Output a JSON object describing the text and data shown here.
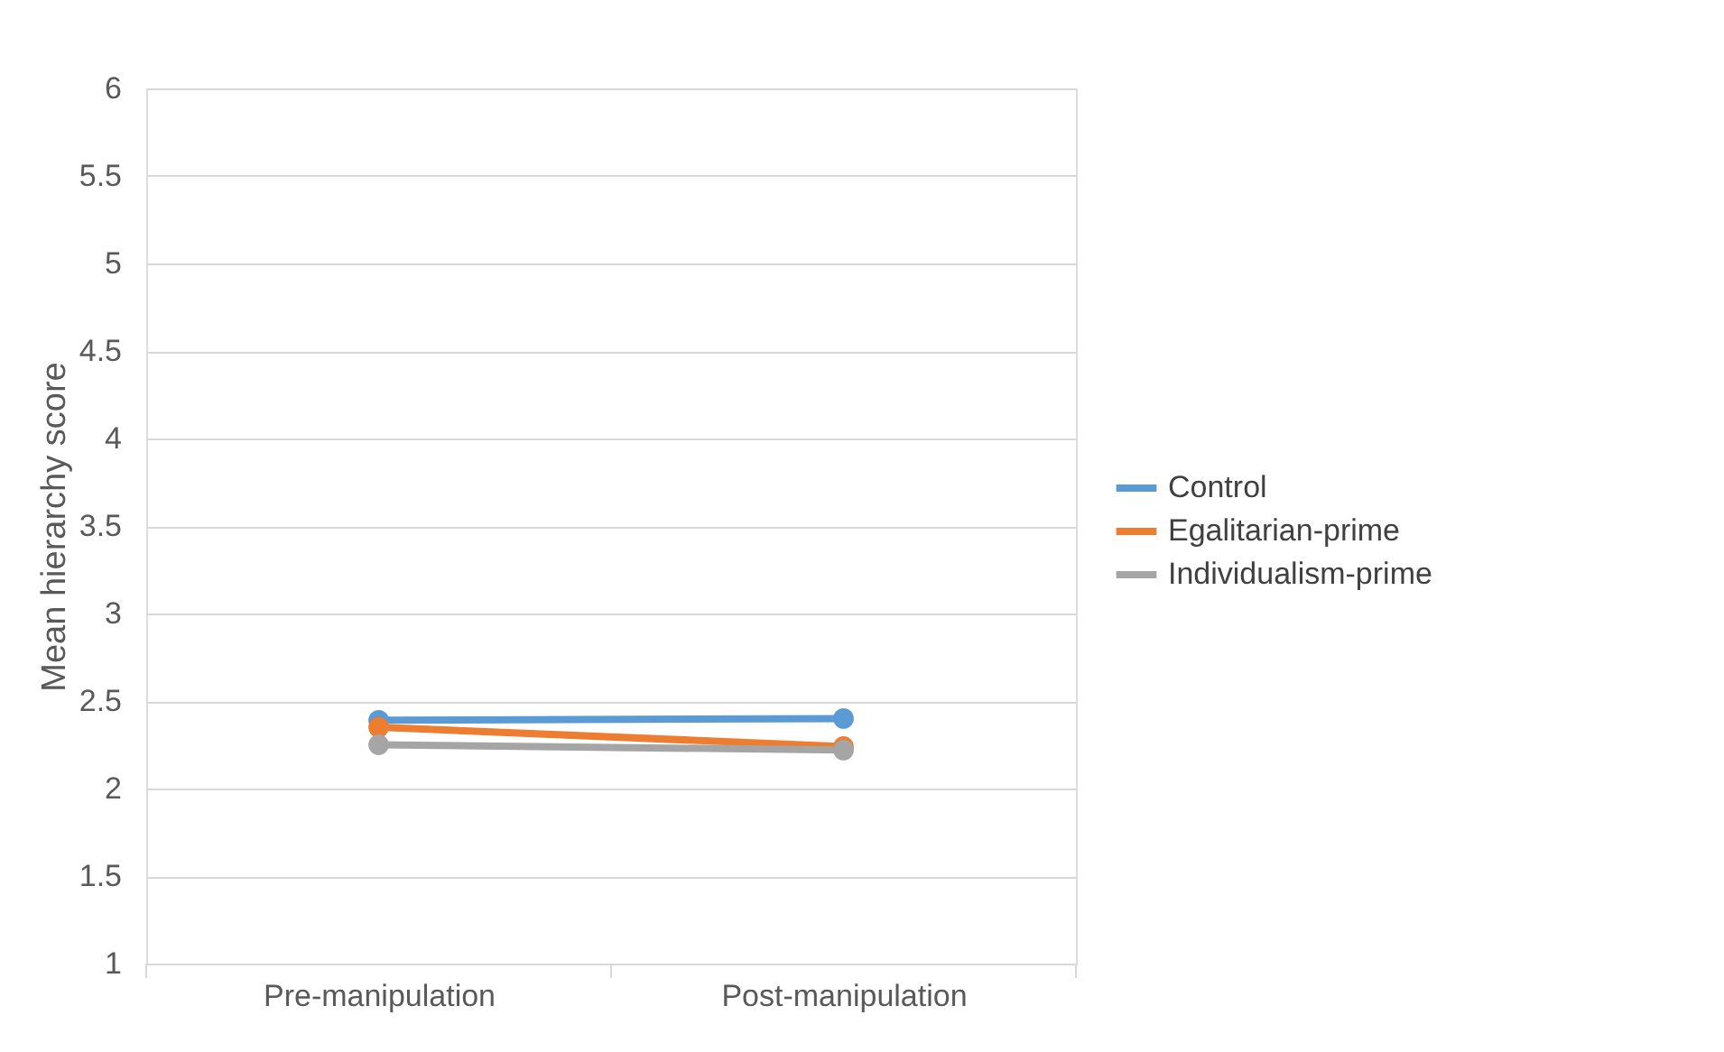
{
  "chart_data": {
    "type": "line",
    "ylabel": "Mean hierarchy score",
    "categories": [
      "Pre-manipulation",
      "Post-manipulation"
    ],
    "series": [
      {
        "name": "Control",
        "color": "#5b9bd5",
        "values": [
          2.39,
          2.4
        ]
      },
      {
        "name": "Egalitarian-prime",
        "color": "#ed7d31",
        "values": [
          2.35,
          2.24
        ]
      },
      {
        "name": "Individualism-prime",
        "color": "#a5a5a5",
        "values": [
          2.25,
          2.22
        ]
      }
    ],
    "ylim": [
      1,
      6
    ],
    "yticks": [
      1,
      1.5,
      2,
      2.5,
      3,
      3.5,
      4,
      4.5,
      5,
      5.5,
      6
    ],
    "grid": "y",
    "legend": "right",
    "marker": "circle",
    "line_style": "solid"
  }
}
